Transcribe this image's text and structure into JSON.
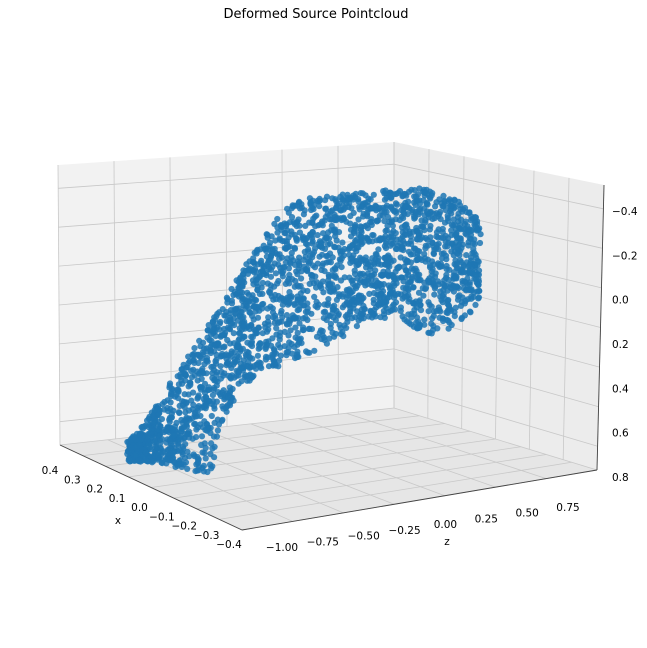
{
  "chart_data": {
    "type": "scatter",
    "title": "Deformed Source Pointcloud",
    "xlabel": "x",
    "ylabel": "",
    "zlabel": "z",
    "marker_color": "#1f77b4",
    "x_ticks": [
      "0.4",
      "0.3",
      "0.2",
      "0.1",
      "0.0",
      "−0.1",
      "−0.2",
      "−0.3",
      "−0.4"
    ],
    "z_ticks": [
      "−1.00",
      "−0.75",
      "−0.50",
      "−0.25",
      "0.00",
      "0.25",
      "0.50",
      "0.75"
    ],
    "v_ticks": [
      "−0.4",
      "−0.2",
      "0.0",
      "0.2",
      "0.4",
      "0.6",
      "0.8"
    ],
    "x_range": [
      0.4,
      -0.4
    ],
    "z_range": [
      -1.0,
      0.85
    ],
    "v_range": [
      -0.5,
      0.85
    ],
    "grid": true,
    "series": [
      {
        "point_count": 2500,
        "shape_outline": {
          "description_points_z_v": [
            [
              -0.55,
              0.72
            ],
            [
              0.55,
              -0.45
            ]
          ]
        }
      }
    ]
  }
}
